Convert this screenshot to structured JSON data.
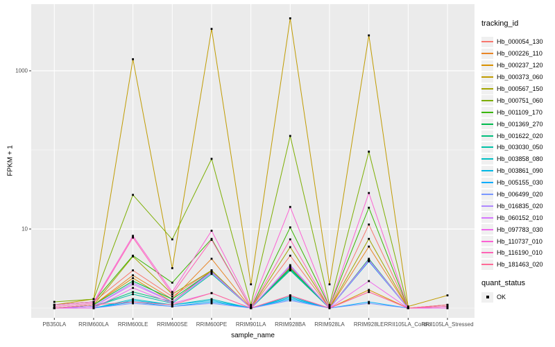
{
  "chart_data": {
    "type": "line",
    "title": "",
    "xlabel": "sample_name",
    "ylabel": "FPKM + 1",
    "y_scale": "log10",
    "y_ticks": [
      10,
      1000
    ],
    "y_minor_gridlines": [
      1,
      100
    ],
    "ylim": [
      0.75,
      7000
    ],
    "grid": true,
    "legend_position": "right",
    "panel_bg": "#EBEBEB",
    "grid_color": "#FFFFFF",
    "point_color": "#000000",
    "point_shape": "square",
    "categories": [
      "PB350LA",
      "RRIM600LA",
      "RRIM600LE",
      "RRIM600SE",
      "RRIM600PE",
      "RRIM901LA",
      "RRIM928BA",
      "RRIM928LA",
      "RRIM928LE",
      "RRII105LA_Control",
      "RRII105LA_Stressed"
    ],
    "series": [
      {
        "name": "Hb_000054_130",
        "color": "#F8766D",
        "values": [
          1.1,
          1.2,
          3.0,
          1.4,
          3.0,
          1.0,
          4.6,
          1.0,
          11.4,
          1.0,
          1.1
        ]
      },
      {
        "name": "Hb_000226_110",
        "color": "#E88526",
        "values": [
          1.0,
          1.1,
          2.6,
          1.3,
          4.2,
          1.0,
          3.3,
          1.0,
          6.0,
          1.0,
          1.0
        ]
      },
      {
        "name": "Hb_000237_120",
        "color": "#D89000",
        "values": [
          1.0,
          1.1,
          2.4,
          1.2,
          3.0,
          1.0,
          3.0,
          1.0,
          1.7,
          1.0,
          1.0
        ]
      },
      {
        "name": "Hb_000373_060",
        "color": "#C09B00",
        "values": [
          1.1,
          1.3,
          1400,
          3.2,
          3380,
          2.0,
          4600,
          2.0,
          2800,
          1.05,
          1.45
        ]
      },
      {
        "name": "Hb_000567_150",
        "color": "#A3A500",
        "values": [
          1.0,
          1.1,
          4.5,
          1.5,
          3.0,
          1.0,
          5.9,
          1.0,
          7.5,
          1.0,
          1.0
        ]
      },
      {
        "name": "Hb_000751_060",
        "color": "#7CAE00",
        "values": [
          1.2,
          1.3,
          27,
          7.4,
          77,
          1.1,
          150,
          1.1,
          95,
          1.0,
          1.1
        ]
      },
      {
        "name": "Hb_001109_170",
        "color": "#39B600",
        "values": [
          1.1,
          1.2,
          4.6,
          2.1,
          7.5,
          1.0,
          10.5,
          1.05,
          18.6,
          1.0,
          1.05
        ]
      },
      {
        "name": "Hb_001369_270",
        "color": "#00BB4E",
        "values": [
          1.0,
          1.1,
          2.2,
          1.3,
          2.9,
          1.0,
          3.2,
          1.0,
          4.2,
          1.0,
          1.0
        ]
      },
      {
        "name": "Hb_001622_020",
        "color": "#00BF7D",
        "values": [
          1.0,
          1.05,
          1.6,
          1.2,
          2.8,
          1.0,
          3.1,
          1.0,
          4.0,
          1.0,
          1.0
        ]
      },
      {
        "name": "Hb_003030_050",
        "color": "#00C1A7",
        "values": [
          1.0,
          1.05,
          1.5,
          1.15,
          2.7,
          1.0,
          3.0,
          1.0,
          3.9,
          1.0,
          1.0
        ]
      },
      {
        "name": "Hb_003858_080",
        "color": "#00BFC4",
        "values": [
          1.0,
          1.0,
          1.3,
          1.1,
          1.3,
          1.0,
          1.4,
          1.0,
          4.0,
          1.0,
          1.0
        ]
      },
      {
        "name": "Hb_003861_090",
        "color": "#00B8E5",
        "values": [
          1.0,
          1.0,
          1.25,
          1.1,
          1.25,
          1.0,
          1.35,
          1.0,
          3.9,
          1.0,
          1.0
        ]
      },
      {
        "name": "Hb_005155_030",
        "color": "#00ACFC",
        "values": [
          1.0,
          1.0,
          1.2,
          1.05,
          1.2,
          1.0,
          1.3,
          1.0,
          1.2,
          1.0,
          1.0
        ]
      },
      {
        "name": "Hb_006499_020",
        "color": "#7997FF",
        "values": [
          1.0,
          1.0,
          1.15,
          1.05,
          1.15,
          1.0,
          1.25,
          1.0,
          1.15,
          1.0,
          1.0
        ]
      },
      {
        "name": "Hb_016835_020",
        "color": "#AE87FF",
        "values": [
          1.0,
          1.05,
          2.1,
          1.2,
          2.9,
          1.0,
          3.5,
          1.0,
          4.1,
          1.0,
          1.0
        ]
      },
      {
        "name": "Hb_060152_010",
        "color": "#D576FE",
        "values": [
          1.0,
          1.05,
          2.0,
          1.2,
          2.8,
          1.0,
          3.4,
          1.0,
          4.0,
          1.0,
          1.0
        ]
      },
      {
        "name": "Hb_097783_030",
        "color": "#EF67EC",
        "values": [
          1.0,
          1.0,
          1.8,
          1.15,
          1.55,
          1.0,
          1.45,
          1.0,
          2.2,
          1.0,
          1.0
        ]
      },
      {
        "name": "Hb_110737_010",
        "color": "#FC61D4",
        "values": [
          1.1,
          1.2,
          8.2,
          1.6,
          9.5,
          1.05,
          19,
          1.05,
          28.5,
          1.0,
          1.05
        ]
      },
      {
        "name": "Hb_116190_010",
        "color": "#FF63B6",
        "values": [
          1.05,
          1.15,
          7.8,
          1.5,
          7.3,
          1.0,
          7.4,
          1.0,
          1.6,
          1.0,
          1.05
        ]
      },
      {
        "name": "Hb_181463_020",
        "color": "#FF6A97",
        "values": [
          1.0,
          1.1,
          1.2,
          1.1,
          1.55,
          1.0,
          1.45,
          1.0,
          1.6,
          1.0,
          1.1
        ]
      }
    ]
  },
  "legend": {
    "tracking_title": "tracking_id",
    "quant_title": "quant_status",
    "quant_items": [
      {
        "label": "OK"
      }
    ]
  }
}
